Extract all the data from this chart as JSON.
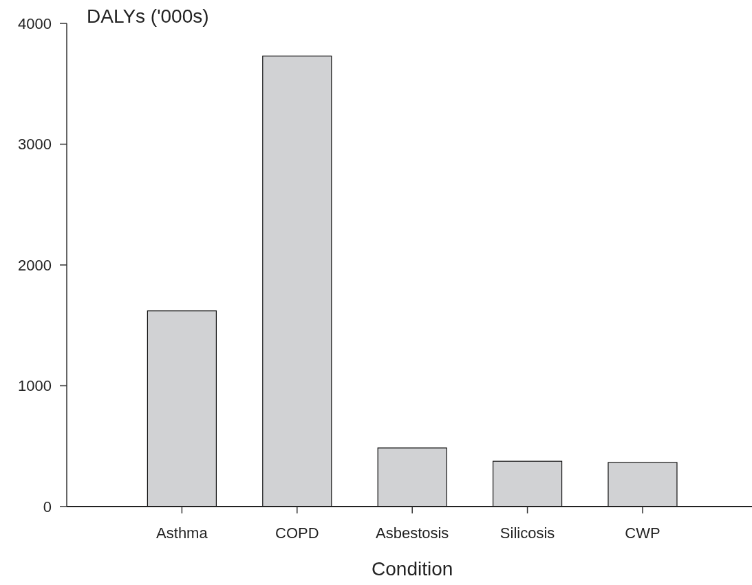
{
  "chart_data": {
    "type": "bar",
    "ylabel": "DALYs ('000s)",
    "xlabel": "Condition",
    "categories": [
      "Asthma",
      "COPD",
      "Asbestosis",
      "Silicosis",
      "CWP"
    ],
    "values": [
      1620,
      3730,
      485,
      375,
      365
    ],
    "color": "#d1d2d4",
    "ylim": [
      0,
      4000
    ],
    "yticks": [
      0,
      1000,
      2000,
      3000,
      4000
    ],
    "grid": false
  }
}
